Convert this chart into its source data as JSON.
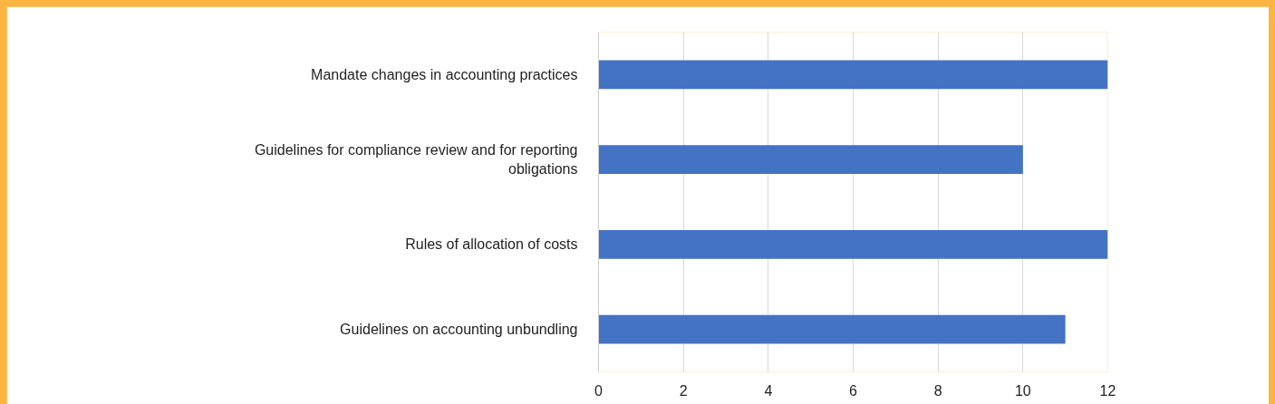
{
  "chart_data": {
    "type": "bar",
    "orientation": "horizontal",
    "categories": [
      "Mandate changes in accounting practices",
      "Guidelines for compliance review and for reporting obligations",
      "Rules of allocation of costs",
      "Guidelines on accounting unbundling"
    ],
    "values": [
      12,
      10,
      12,
      11
    ],
    "color": "#4472c4",
    "xlim": [
      0,
      12
    ],
    "xticks": [
      0,
      2,
      4,
      6,
      8,
      10,
      12
    ],
    "grid": "x"
  }
}
